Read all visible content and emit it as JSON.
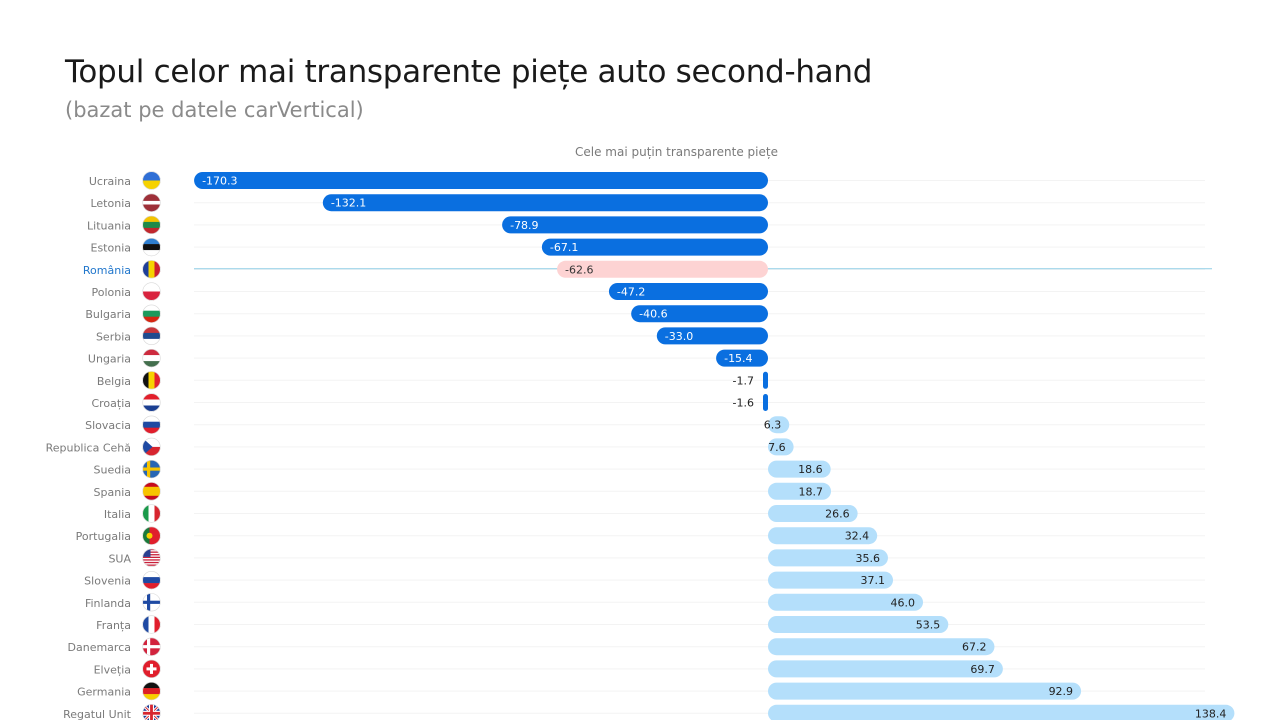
{
  "chart_data": {
    "type": "bar",
    "orientation": "horizontal",
    "title": "Topul celor mai transparente piețe auto second-hand",
    "subtitle": "(bazat pe datele carVertical)",
    "annotation": "Cele mai puțin transparente piețe",
    "highlight": "România",
    "colors": {
      "negative": "#0a6fe0",
      "positive": "#b4dffb",
      "highlight": "#fdd3d3",
      "highlight_line": "#8fcde6"
    },
    "rows": [
      {
        "name": "Ucraina",
        "value": -170.3,
        "label": "-170.3",
        "flag": "ua-flag-icon"
      },
      {
        "name": "Letonia",
        "value": -132.1,
        "label": "-132.1",
        "flag": "lv-flag-icon"
      },
      {
        "name": "Lituania",
        "value": -78.9,
        "label": "-78.9",
        "flag": "lt-flag-icon"
      },
      {
        "name": "Estonia",
        "value": -67.1,
        "label": "-67.1",
        "flag": "ee-flag-icon"
      },
      {
        "name": "România",
        "value": -62.6,
        "label": "-62.6",
        "flag": "ro-flag-icon"
      },
      {
        "name": "Polonia",
        "value": -47.2,
        "label": "-47.2",
        "flag": "pl-flag-icon"
      },
      {
        "name": "Bulgaria",
        "value": -40.6,
        "label": "-40.6",
        "flag": "bg-flag-icon"
      },
      {
        "name": "Serbia",
        "value": -33.0,
        "label": "-33.0",
        "flag": "rs-flag-icon"
      },
      {
        "name": "Ungaria",
        "value": -15.4,
        "label": "-15.4",
        "flag": "hu-flag-icon"
      },
      {
        "name": "Belgia",
        "value": -1.7,
        "label": "-1.7",
        "flag": "be-flag-icon"
      },
      {
        "name": "Croația",
        "value": -1.6,
        "label": "-1.6",
        "flag": "hr-flag-icon"
      },
      {
        "name": "Slovacia",
        "value": 6.3,
        "label": "6.3",
        "flag": "sk-flag-icon"
      },
      {
        "name": "Republica Cehă",
        "value": 7.6,
        "label": "7.6",
        "flag": "cz-flag-icon"
      },
      {
        "name": "Suedia",
        "value": 18.6,
        "label": "18.6",
        "flag": "se-flag-icon"
      },
      {
        "name": "Spania",
        "value": 18.7,
        "label": "18.7",
        "flag": "es-flag-icon"
      },
      {
        "name": "Italia",
        "value": 26.6,
        "label": "26.6",
        "flag": "it-flag-icon"
      },
      {
        "name": "Portugalia",
        "value": 32.4,
        "label": "32.4",
        "flag": "pt-flag-icon"
      },
      {
        "name": "SUA",
        "value": 35.6,
        "label": "35.6",
        "flag": "us-flag-icon"
      },
      {
        "name": "Slovenia",
        "value": 37.1,
        "label": "37.1",
        "flag": "si-flag-icon"
      },
      {
        "name": "Finlanda",
        "value": 46.0,
        "label": "46.0",
        "flag": "fi-flag-icon"
      },
      {
        "name": "Franța",
        "value": 53.5,
        "label": "53.5",
        "flag": "fr-flag-icon"
      },
      {
        "name": "Danemarca",
        "value": 67.2,
        "label": "67.2",
        "flag": "dk-flag-icon"
      },
      {
        "name": "Elveția",
        "value": 69.7,
        "label": "69.7",
        "flag": "ch-flag-icon"
      },
      {
        "name": "Germania",
        "value": 92.9,
        "label": "92.9",
        "flag": "de-flag-icon"
      },
      {
        "name": "Regatul Unit",
        "value": 138.4,
        "label": "138.4",
        "flag": "gb-flag-icon"
      }
    ]
  }
}
